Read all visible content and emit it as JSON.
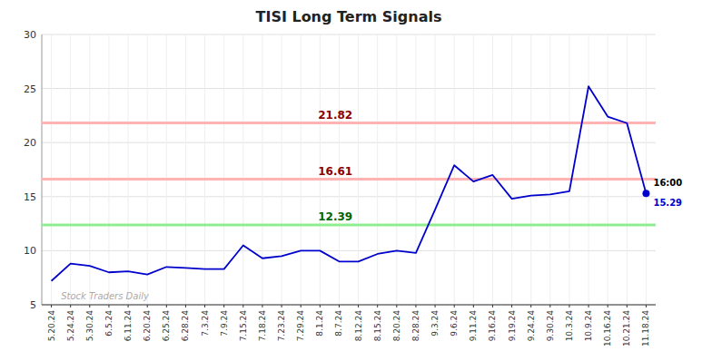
{
  "chart_data": {
    "type": "line",
    "title": "TISI Long Term Signals",
    "categories": [
      "5.20.24",
      "5.24.24",
      "5.30.24",
      "6.5.24",
      "6.11.24",
      "6.20.24",
      "6.25.24",
      "6.28.24",
      "7.3.24",
      "7.9.24",
      "7.15.24",
      "7.18.24",
      "7.23.24",
      "7.29.24",
      "8.1.24",
      "8.7.24",
      "8.12.24",
      "8.15.24",
      "8.20.24",
      "8.28.24",
      "9.3.24",
      "9.6.24",
      "9.11.24",
      "9.16.24",
      "9.19.24",
      "9.24.24",
      "9.30.24",
      "10.3.24",
      "10.9.24",
      "10.16.24",
      "10.21.24",
      "11.18.24"
    ],
    "values": [
      7.2,
      8.8,
      8.6,
      8.0,
      8.1,
      7.8,
      8.5,
      8.4,
      8.3,
      8.3,
      10.5,
      9.3,
      9.5,
      10.0,
      10.0,
      9.0,
      9.0,
      9.7,
      10.0,
      9.8,
      13.8,
      17.9,
      16.4,
      17.0,
      14.8,
      15.1,
      15.2,
      15.5,
      25.2,
      22.4,
      21.8,
      15.29
    ],
    "color": "#0000cc",
    "ylim": [
      5,
      30
    ],
    "yticks": [
      5,
      10,
      15,
      20,
      25,
      30
    ],
    "grid": true,
    "reference_lines": [
      {
        "value": 21.82,
        "label": "21.82",
        "color": "#ffb3b3",
        "label_color": "#8b0000"
      },
      {
        "value": 16.61,
        "label": "16.61",
        "color": "#ffb3b3",
        "label_color": "#8b0000"
      },
      {
        "value": 12.39,
        "label": "12.39",
        "color": "#90ee90",
        "label_color": "#006400"
      }
    ],
    "last_time": "16:00",
    "last_price_label": "15.29",
    "watermark": "Stock Traders Daily"
  }
}
